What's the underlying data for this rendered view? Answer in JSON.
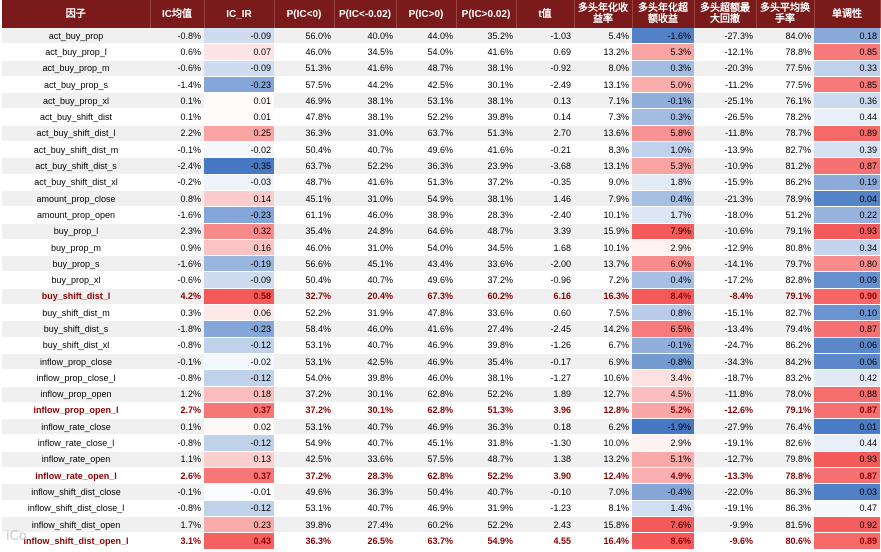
{
  "headers": [
    "因子",
    "IC均值",
    "IC_IR",
    "P(IC<0)",
    "P(IC<-0.02)",
    "P(IC>0)",
    "P(IC>0.02)",
    "t值",
    "多头年化收益率",
    "多头年化超额收益",
    "多头超额最大回撤",
    "多头平均换手率",
    "单调性"
  ],
  "rows": [
    {
      "factor": "act_buy_prop",
      "ic": "-0.8%",
      "ir": "-0.09",
      "p_lt0": "56.0%",
      "p_lt002": "40.0%",
      "p_gt0": "44.0%",
      "p_gt002": "35.2%",
      "t": "-1.03",
      "ann": "5.4%",
      "excess": "-1.6%",
      "mdd": "-27.3%",
      "turnover": "84.0%",
      "mono": "0.18"
    },
    {
      "factor": "act_buy_prop_l",
      "ic": "0.6%",
      "ir": "0.07",
      "p_lt0": "46.0%",
      "p_lt002": "34.5%",
      "p_gt0": "54.0%",
      "p_gt002": "41.6%",
      "t": "0.69",
      "ann": "13.2%",
      "excess": "5.3%",
      "mdd": "-12.1%",
      "turnover": "78.8%",
      "mono": "0.85"
    },
    {
      "factor": "act_buy_prop_m",
      "ic": "-0.6%",
      "ir": "-0.09",
      "p_lt0": "51.3%",
      "p_lt002": "41.6%",
      "p_gt0": "48.7%",
      "p_gt002": "38.1%",
      "t": "-0.92",
      "ann": "8.0%",
      "excess": "0.3%",
      "mdd": "-20.3%",
      "turnover": "77.5%",
      "mono": "0.33"
    },
    {
      "factor": "act_buy_prop_s",
      "ic": "-1.4%",
      "ir": "-0.23",
      "p_lt0": "57.5%",
      "p_lt002": "44.2%",
      "p_gt0": "42.5%",
      "p_gt002": "30.1%",
      "t": "-2.49",
      "ann": "13.1%",
      "excess": "5.0%",
      "mdd": "-11.2%",
      "turnover": "77.5%",
      "mono": "0.85"
    },
    {
      "factor": "act_buy_prop_xl",
      "ic": "0.1%",
      "ir": "0.01",
      "p_lt0": "46.9%",
      "p_lt002": "38.1%",
      "p_gt0": "53.1%",
      "p_gt002": "38.1%",
      "t": "0.13",
      "ann": "7.1%",
      "excess": "-0.1%",
      "mdd": "-25.1%",
      "turnover": "76.1%",
      "mono": "0.36"
    },
    {
      "factor": "act_buy_shift_dist",
      "ic": "0.1%",
      "ir": "0.01",
      "p_lt0": "47.8%",
      "p_lt002": "38.1%",
      "p_gt0": "52.2%",
      "p_gt002": "39.8%",
      "t": "0.14",
      "ann": "7.3%",
      "excess": "0.3%",
      "mdd": "-26.5%",
      "turnover": "78.2%",
      "mono": "0.44"
    },
    {
      "factor": "act_buy_shift_dist_l",
      "ic": "2.2%",
      "ir": "0.25",
      "p_lt0": "36.3%",
      "p_lt002": "31.0%",
      "p_gt0": "63.7%",
      "p_gt002": "51.3%",
      "t": "2.70",
      "ann": "13.6%",
      "excess": "5.8%",
      "mdd": "-11.8%",
      "turnover": "78.7%",
      "mono": "0.89"
    },
    {
      "factor": "act_buy_shift_dist_m",
      "ic": "-0.1%",
      "ir": "-0.02",
      "p_lt0": "50.4%",
      "p_lt002": "40.7%",
      "p_gt0": "49.6%",
      "p_gt002": "41.6%",
      "t": "-0.21",
      "ann": "8.3%",
      "excess": "1.0%",
      "mdd": "-13.9%",
      "turnover": "82.7%",
      "mono": "0.39"
    },
    {
      "factor": "act_buy_shift_dist_s",
      "ic": "-2.4%",
      "ir": "-0.35",
      "p_lt0": "63.7%",
      "p_lt002": "52.2%",
      "p_gt0": "36.3%",
      "p_gt002": "23.9%",
      "t": "-3.68",
      "ann": "13.1%",
      "excess": "5.3%",
      "mdd": "-10.9%",
      "turnover": "81.2%",
      "mono": "0.87"
    },
    {
      "factor": "act_buy_shift_dist_xl",
      "ic": "-0.2%",
      "ir": "-0.03",
      "p_lt0": "48.7%",
      "p_lt002": "41.6%",
      "p_gt0": "51.3%",
      "p_gt002": "37.2%",
      "t": "-0.35",
      "ann": "9.0%",
      "excess": "1.8%",
      "mdd": "-15.9%",
      "turnover": "86.2%",
      "mono": "0.19"
    },
    {
      "factor": "amount_prop_close",
      "ic": "0.8%",
      "ir": "0.14",
      "p_lt0": "45.1%",
      "p_lt002": "31.0%",
      "p_gt0": "54.9%",
      "p_gt002": "38.1%",
      "t": "1.46",
      "ann": "7.9%",
      "excess": "0.4%",
      "mdd": "-21.3%",
      "turnover": "78.9%",
      "mono": "0.04"
    },
    {
      "factor": "amount_prop_open",
      "ic": "-1.6%",
      "ir": "-0.23",
      "p_lt0": "61.1%",
      "p_lt002": "46.0%",
      "p_gt0": "38.9%",
      "p_gt002": "28.3%",
      "t": "-2.40",
      "ann": "10.1%",
      "excess": "1.7%",
      "mdd": "-18.0%",
      "turnover": "51.2%",
      "mono": "0.22"
    },
    {
      "factor": "buy_prop_l",
      "ic": "2.3%",
      "ir": "0.32",
      "p_lt0": "35.4%",
      "p_lt002": "24.8%",
      "p_gt0": "64.6%",
      "p_gt002": "48.7%",
      "t": "3.39",
      "ann": "15.9%",
      "excess": "7.9%",
      "mdd": "-10.6%",
      "turnover": "79.1%",
      "mono": "0.93"
    },
    {
      "factor": "buy_prop_m",
      "ic": "0.9%",
      "ir": "0.16",
      "p_lt0": "46.0%",
      "p_lt002": "31.0%",
      "p_gt0": "54.0%",
      "p_gt002": "34.5%",
      "t": "1.68",
      "ann": "10.1%",
      "excess": "2.9%",
      "mdd": "-12.9%",
      "turnover": "80.8%",
      "mono": "0.34"
    },
    {
      "factor": "buy_prop_s",
      "ic": "-1.6%",
      "ir": "-0.19",
      "p_lt0": "56.6%",
      "p_lt002": "45.1%",
      "p_gt0": "43.4%",
      "p_gt002": "33.6%",
      "t": "-2.00",
      "ann": "13.7%",
      "excess": "6.0%",
      "mdd": "-14.1%",
      "turnover": "79.7%",
      "mono": "0.80"
    },
    {
      "factor": "buy_prop_xl",
      "ic": "-0.6%",
      "ir": "-0.09",
      "p_lt0": "50.4%",
      "p_lt002": "40.7%",
      "p_gt0": "49.6%",
      "p_gt002": "37.2%",
      "t": "-0.96",
      "ann": "7.2%",
      "excess": "0.4%",
      "mdd": "-17.2%",
      "turnover": "82.8%",
      "mono": "0.09"
    },
    {
      "factor": "buy_shift_dist_l",
      "ic": "4.2%",
      "ir": "0.58",
      "p_lt0": "32.7%",
      "p_lt002": "20.4%",
      "p_gt0": "67.3%",
      "p_gt002": "60.2%",
      "t": "6.16",
      "ann": "16.3%",
      "excess": "8.4%",
      "mdd": "-8.4%",
      "turnover": "79.1%",
      "mono": "0.90",
      "bold": true
    },
    {
      "factor": "buy_shift_dist_m",
      "ic": "0.3%",
      "ir": "0.06",
      "p_lt0": "52.2%",
      "p_lt002": "31.9%",
      "p_gt0": "47.8%",
      "p_gt002": "33.6%",
      "t": "0.60",
      "ann": "7.5%",
      "excess": "0.8%",
      "mdd": "-15.1%",
      "turnover": "82.7%",
      "mono": "0.10"
    },
    {
      "factor": "buy_shift_dist_s",
      "ic": "-1.8%",
      "ir": "-0.23",
      "p_lt0": "58.4%",
      "p_lt002": "46.0%",
      "p_gt0": "41.6%",
      "p_gt002": "27.4%",
      "t": "-2.45",
      "ann": "14.2%",
      "excess": "6.5%",
      "mdd": "-13.4%",
      "turnover": "79.4%",
      "mono": "0.87"
    },
    {
      "factor": "buy_shift_dist_xl",
      "ic": "-0.8%",
      "ir": "-0.12",
      "p_lt0": "53.1%",
      "p_lt002": "40.7%",
      "p_gt0": "46.9%",
      "p_gt002": "39.8%",
      "t": "-1.26",
      "ann": "6.7%",
      "excess": "-0.1%",
      "mdd": "-24.7%",
      "turnover": "86.2%",
      "mono": "0.06"
    },
    {
      "factor": "inflow_prop_close",
      "ic": "-0.1%",
      "ir": "-0.02",
      "p_lt0": "53.1%",
      "p_lt002": "42.5%",
      "p_gt0": "46.9%",
      "p_gt002": "35.4%",
      "t": "-0.17",
      "ann": "6.9%",
      "excess": "-0.8%",
      "mdd": "-34.3%",
      "turnover": "84.2%",
      "mono": "0.06"
    },
    {
      "factor": "inflow_prop_close_l",
      "ic": "-0.8%",
      "ir": "-0.12",
      "p_lt0": "54.0%",
      "p_lt002": "39.8%",
      "p_gt0": "46.0%",
      "p_gt002": "38.1%",
      "t": "-1.27",
      "ann": "10.6%",
      "excess": "3.4%",
      "mdd": "-18.7%",
      "turnover": "83.2%",
      "mono": "0.42"
    },
    {
      "factor": "inflow_prop_open",
      "ic": "1.2%",
      "ir": "0.18",
      "p_lt0": "37.2%",
      "p_lt002": "30.1%",
      "p_gt0": "62.8%",
      "p_gt002": "52.2%",
      "t": "1.89",
      "ann": "12.7%",
      "excess": "4.5%",
      "mdd": "-11.8%",
      "turnover": "78.0%",
      "mono": "0.88"
    },
    {
      "factor": "inflow_prop_open_l",
      "ic": "2.7%",
      "ir": "0.37",
      "p_lt0": "37.2%",
      "p_lt002": "30.1%",
      "p_gt0": "62.8%",
      "p_gt002": "51.3%",
      "t": "3.96",
      "ann": "12.8%",
      "excess": "5.2%",
      "mdd": "-12.6%",
      "turnover": "79.1%",
      "mono": "0.87",
      "bold": true
    },
    {
      "factor": "inflow_rate_close",
      "ic": "0.1%",
      "ir": "0.02",
      "p_lt0": "53.1%",
      "p_lt002": "40.7%",
      "p_gt0": "46.9%",
      "p_gt002": "36.3%",
      "t": "0.18",
      "ann": "6.2%",
      "excess": "-1.9%",
      "mdd": "-27.9%",
      "turnover": "76.4%",
      "mono": "0.01"
    },
    {
      "factor": "inflow_rate_close_l",
      "ic": "-0.8%",
      "ir": "-0.12",
      "p_lt0": "54.9%",
      "p_lt002": "40.7%",
      "p_gt0": "45.1%",
      "p_gt002": "31.8%",
      "t": "-1.30",
      "ann": "10.0%",
      "excess": "2.9%",
      "mdd": "-19.1%",
      "turnover": "82.6%",
      "mono": "0.44"
    },
    {
      "factor": "inflow_rate_open",
      "ic": "1.1%",
      "ir": "0.13",
      "p_lt0": "42.5%",
      "p_lt002": "33.6%",
      "p_gt0": "57.5%",
      "p_gt002": "48.7%",
      "t": "1.38",
      "ann": "13.2%",
      "excess": "5.1%",
      "mdd": "-12.7%",
      "turnover": "79.8%",
      "mono": "0.93"
    },
    {
      "factor": "inflow_rate_open_l",
      "ic": "2.6%",
      "ir": "0.37",
      "p_lt0": "37.2%",
      "p_lt002": "28.3%",
      "p_gt0": "62.8%",
      "p_gt002": "52.2%",
      "t": "3.90",
      "ann": "12.4%",
      "excess": "4.9%",
      "mdd": "-13.3%",
      "turnover": "78.8%",
      "mono": "0.87",
      "bold": true
    },
    {
      "factor": "inflow_shift_dist_close",
      "ic": "-0.1%",
      "ir": "-0.01",
      "p_lt0": "49.6%",
      "p_lt002": "36.3%",
      "p_gt0": "50.4%",
      "p_gt002": "40.7%",
      "t": "-0.10",
      "ann": "7.0%",
      "excess": "-0.4%",
      "mdd": "-22.0%",
      "turnover": "86.3%",
      "mono": "0.03"
    },
    {
      "factor": "inflow_shift_dist_close_l",
      "ic": "-0.8%",
      "ir": "-0.12",
      "p_lt0": "53.1%",
      "p_lt002": "40.7%",
      "p_gt0": "46.9%",
      "p_gt002": "31.9%",
      "t": "-1.23",
      "ann": "8.1%",
      "excess": "1.4%",
      "mdd": "-19.1%",
      "turnover": "86.3%",
      "mono": "0.47"
    },
    {
      "factor": "inflow_shift_dist_open",
      "ic": "1.7%",
      "ir": "0.23",
      "p_lt0": "39.8%",
      "p_lt002": "27.4%",
      "p_gt0": "60.2%",
      "p_gt002": "52.2%",
      "t": "2.43",
      "ann": "15.8%",
      "excess": "7.6%",
      "mdd": "-9.9%",
      "turnover": "81.5%",
      "mono": "0.92"
    },
    {
      "factor": "inflow_shift_dist_open_l",
      "ic": "3.1%",
      "ir": "0.43",
      "p_lt0": "36.3%",
      "p_lt002": "26.5%",
      "p_gt0": "63.7%",
      "p_gt002": "54.9%",
      "t": "4.55",
      "ann": "16.4%",
      "excess": "8.6%",
      "mdd": "-9.6%",
      "turnover": "80.6%",
      "mono": "0.89",
      "bold": true
    }
  ],
  "watermark": "iCo"
}
